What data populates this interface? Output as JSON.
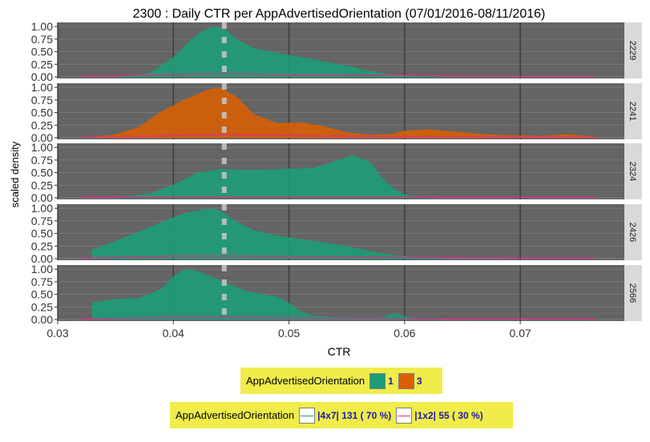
{
  "chart_data": {
    "type": "area",
    "title": "2300 : Daily CTR per AppAdvertisedOrientation (07/01/2016-08/11/2016)",
    "xlabel": "CTR",
    "ylabel": "scaled density",
    "xlim": [
      0.03,
      0.079
    ],
    "ylim": [
      0,
      1.05
    ],
    "x_ticks": [
      "0.03",
      "0.04",
      "0.05",
      "0.06",
      "0.07"
    ],
    "y_ticks": [
      "0.00",
      "0.25",
      "0.50",
      "0.75",
      "1.00"
    ],
    "median_marker": 0.0444,
    "legend_fill": {
      "title": "AppAdvertisedOrientation",
      "items": [
        {
          "label": "1",
          "color": "#1b9e77"
        },
        {
          "label": "3",
          "color": "#d95f02"
        }
      ]
    },
    "legend_color": {
      "title": "AppAdvertisedOrientation",
      "items": [
        {
          "label": "|4x7| 131 ( 70 %)",
          "color": "#1b9e77"
        },
        {
          "label": "|1x2| 55 ( 30 %)",
          "color": "#e7298a"
        }
      ]
    },
    "panels": [
      {
        "label": "2229",
        "fill_color": "#1b9e77",
        "density_x": [
          0.0355,
          0.038,
          0.04,
          0.0415,
          0.0425,
          0.0435,
          0.0445,
          0.0455,
          0.047,
          0.049,
          0.051,
          0.053,
          0.055,
          0.057,
          0.059,
          0.061,
          0.063
        ],
        "density_y": [
          0.0,
          0.07,
          0.38,
          0.72,
          0.9,
          1.0,
          0.93,
          0.74,
          0.56,
          0.47,
          0.39,
          0.3,
          0.21,
          0.11,
          0.04,
          0.01,
          0.0
        ],
        "line_x": [
          0.032,
          0.035,
          0.04,
          0.045,
          0.05,
          0.055,
          0.06,
          0.065,
          0.07,
          0.0765
        ],
        "line_y": [
          0.01,
          0.02,
          0.05,
          0.06,
          0.04,
          0.04,
          0.03,
          0.02,
          0.01,
          0.01
        ]
      },
      {
        "label": "2241",
        "fill_color": "#d95f02",
        "density_x": [
          0.033,
          0.035,
          0.037,
          0.039,
          0.041,
          0.043,
          0.044,
          0.0455,
          0.047,
          0.049,
          0.051,
          0.053,
          0.055,
          0.057,
          0.059,
          0.06,
          0.062,
          0.064,
          0.066,
          0.068,
          0.07,
          0.072,
          0.074,
          0.0765
        ],
        "density_y": [
          0.01,
          0.06,
          0.2,
          0.52,
          0.75,
          0.95,
          0.99,
          0.8,
          0.45,
          0.28,
          0.3,
          0.22,
          0.1,
          0.05,
          0.07,
          0.13,
          0.16,
          0.12,
          0.08,
          0.05,
          0.04,
          0.03,
          0.06,
          0.02
        ],
        "line_x": [
          0.032,
          0.035,
          0.04,
          0.045,
          0.05,
          0.055,
          0.06,
          0.065,
          0.07,
          0.0765
        ],
        "line_y": [
          0.01,
          0.02,
          0.04,
          0.06,
          0.04,
          0.03,
          0.02,
          0.02,
          0.01,
          0.01
        ]
      },
      {
        "label": "2324",
        "fill_color": "#1b9e77",
        "density_x": [
          0.035,
          0.038,
          0.04,
          0.042,
          0.044,
          0.046,
          0.048,
          0.05,
          0.052,
          0.054,
          0.0555,
          0.057,
          0.058,
          0.059,
          0.06,
          0.061,
          0.0625
        ],
        "density_y": [
          0.0,
          0.08,
          0.25,
          0.48,
          0.56,
          0.55,
          0.55,
          0.57,
          0.58,
          0.72,
          0.84,
          0.7,
          0.4,
          0.18,
          0.06,
          0.02,
          0.0
        ],
        "line_x": [
          0.032,
          0.04,
          0.05,
          0.06,
          0.07,
          0.0765
        ],
        "line_y": [
          0.01,
          0.01,
          0.01,
          0.01,
          0.01,
          0.01
        ]
      },
      {
        "label": "2426",
        "fill_color": "#1b9e77",
        "density_x": [
          0.033,
          0.035,
          0.037,
          0.039,
          0.041,
          0.043,
          0.044,
          0.0455,
          0.047,
          0.049,
          0.051,
          0.053,
          0.055,
          0.057,
          0.059,
          0.061,
          0.063
        ],
        "density_y": [
          0.17,
          0.34,
          0.53,
          0.72,
          0.9,
          0.99,
          0.96,
          0.72,
          0.55,
          0.45,
          0.38,
          0.32,
          0.24,
          0.14,
          0.06,
          0.02,
          0.0
        ],
        "line_x": [
          0.032,
          0.035,
          0.04,
          0.045,
          0.05,
          0.055,
          0.06,
          0.065,
          0.07,
          0.0765
        ],
        "line_y": [
          0.01,
          0.02,
          0.05,
          0.05,
          0.04,
          0.04,
          0.02,
          0.02,
          0.01,
          0.01
        ]
      },
      {
        "label": "2566",
        "fill_color": "#1b9e77",
        "density_x": [
          0.033,
          0.035,
          0.037,
          0.039,
          0.04,
          0.041,
          0.042,
          0.044,
          0.046,
          0.048,
          0.049,
          0.05,
          0.051,
          0.052,
          0.054,
          0.056,
          0.058,
          0.059,
          0.06,
          0.061,
          0.063
        ],
        "density_y": [
          0.33,
          0.4,
          0.42,
          0.6,
          0.85,
          0.99,
          0.96,
          0.78,
          0.58,
          0.48,
          0.44,
          0.32,
          0.15,
          0.07,
          0.04,
          0.02,
          0.02,
          0.12,
          0.06,
          0.01,
          0.0
        ],
        "line_x": [
          0.032,
          0.035,
          0.04,
          0.045,
          0.05,
          0.055,
          0.06,
          0.065,
          0.07,
          0.0765
        ],
        "line_y": [
          0.01,
          0.02,
          0.04,
          0.04,
          0.03,
          0.02,
          0.02,
          0.01,
          0.01,
          0.01
        ]
      }
    ]
  }
}
